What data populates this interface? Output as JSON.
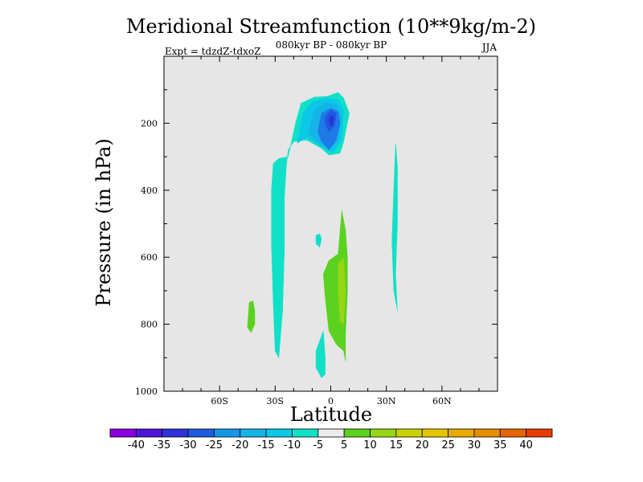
{
  "chart_data": {
    "type": "contour",
    "title": "Meridional Streamfunction (10**9kg/m-2)",
    "subtitle": "080kyr BP - 080kyr BP",
    "experiment": "Expt = tdzdZ-tdxoZ",
    "season": "JJA",
    "xlabel": "Latitude",
    "ylabel": "Pressure (in hPa)",
    "xlim": [
      -90,
      90
    ],
    "ylim": [
      1000,
      0
    ],
    "x_ticks": [
      {
        "value": -60,
        "label": "60S"
      },
      {
        "value": -30,
        "label": "30S"
      },
      {
        "value": 0,
        "label": "0"
      },
      {
        "value": 30,
        "label": "30N"
      },
      {
        "value": 60,
        "label": "60N"
      }
    ],
    "y_ticks": [
      {
        "value": 200,
        "label": "200"
      },
      {
        "value": 400,
        "label": "400"
      },
      {
        "value": 600,
        "label": "600"
      },
      {
        "value": 800,
        "label": "800"
      },
      {
        "value": 1000,
        "label": "1000"
      }
    ],
    "background_color": "#e6e6e6",
    "colorbar": {
      "colors": [
        "#8a00e0",
        "#5014d8",
        "#2d32dc",
        "#1e5ae0",
        "#1496e6",
        "#14b4e6",
        "#0ac8e6",
        "#10e0c8",
        "#ececec",
        "#5ad21e",
        "#96d614",
        "#c8d200",
        "#e6c400",
        "#e6aa00",
        "#e68c00",
        "#e66400",
        "#e63c00"
      ],
      "labels": [
        "-40",
        "-35",
        "-30",
        "-25",
        "-20",
        "-15",
        "-10",
        "-5",
        "5",
        "10",
        "15",
        "20",
        "25",
        "30",
        "35",
        "40"
      ]
    },
    "regions": [
      {
        "level": -5,
        "color": "#10e0c8",
        "points": [
          [
            -23,
            300
          ],
          [
            -19,
            200
          ],
          [
            -16,
            140
          ],
          [
            -9,
            122
          ],
          [
            -2,
            120
          ],
          [
            4,
            108
          ],
          [
            7,
            125
          ],
          [
            10,
            170
          ],
          [
            7,
            255
          ],
          [
            5,
            290
          ],
          [
            -1,
            295
          ],
          [
            -5,
            275
          ],
          [
            -13,
            250
          ],
          [
            -20,
            255
          ],
          [
            -23,
            280
          ],
          [
            -24,
            330
          ],
          [
            -25,
            420
          ],
          [
            -25,
            570
          ],
          [
            -26,
            760
          ],
          [
            -28,
            900
          ],
          [
            -30,
            880
          ],
          [
            -31,
            740
          ],
          [
            -32,
            560
          ],
          [
            -32,
            400
          ],
          [
            -31,
            320
          ],
          [
            -28,
            305
          ]
        ]
      },
      {
        "level": -10,
        "color": "#0ac8e6",
        "points": [
          [
            -18,
            260
          ],
          [
            -15,
            170
          ],
          [
            -10,
            135
          ],
          [
            -2,
            125
          ],
          [
            4,
            130
          ],
          [
            7,
            160
          ],
          [
            6,
            250
          ],
          [
            1,
            288
          ],
          [
            -5,
            270
          ],
          [
            -13,
            240
          ]
        ]
      },
      {
        "level": -15,
        "color": "#14b4e6",
        "points": [
          [
            -12,
            230
          ],
          [
            -9,
            160
          ],
          [
            -3,
            140
          ],
          [
            3,
            145
          ],
          [
            6,
            180
          ],
          [
            4,
            250
          ],
          [
            0,
            275
          ],
          [
            -6,
            262
          ]
        ]
      },
      {
        "level": -20,
        "color": "#1e7ae6",
        "points": [
          [
            -7,
            225
          ],
          [
            -5,
            170
          ],
          [
            0,
            155
          ],
          [
            4,
            165
          ],
          [
            5,
            200
          ],
          [
            3,
            250
          ],
          [
            -1,
            280
          ],
          [
            -5,
            255
          ]
        ]
      },
      {
        "level": -25,
        "color": "#1e5ae0",
        "points": [
          [
            -3,
            180
          ],
          [
            0,
            160
          ],
          [
            3,
            170
          ],
          [
            2,
            210
          ],
          [
            -1,
            225
          ],
          [
            -3,
            205
          ]
        ]
      },
      {
        "level": -30,
        "color": "#2d32dc",
        "points": [
          [
            -1,
            190
          ],
          [
            0,
            175
          ],
          [
            2,
            182
          ],
          [
            1,
            205
          ],
          [
            0,
            210
          ]
        ]
      },
      {
        "level": -5,
        "color": "#10e0c8",
        "points": [
          [
            -8,
            535
          ],
          [
            -6,
            530
          ],
          [
            -5,
            545
          ],
          [
            -6,
            570
          ],
          [
            -8,
            560
          ]
        ]
      },
      {
        "level": -5,
        "color": "#10e0c8",
        "points": [
          [
            -6,
            850
          ],
          [
            -4,
            820
          ],
          [
            -3,
            900
          ],
          [
            -3,
            950
          ],
          [
            -5,
            960
          ],
          [
            -8,
            930
          ],
          [
            -8,
            880
          ]
        ]
      },
      {
        "level": -5,
        "color": "#10e0c8",
        "points": [
          [
            35,
            260
          ],
          [
            36,
            330
          ],
          [
            36,
            500
          ],
          [
            35,
            650
          ],
          [
            36,
            760
          ],
          [
            34,
            700
          ],
          [
            33,
            550
          ],
          [
            34,
            400
          ]
        ]
      },
      {
        "level": 5,
        "color": "#5ad21e",
        "points": [
          [
            -44,
            735
          ],
          [
            -42,
            730
          ],
          [
            -41,
            760
          ],
          [
            -41,
            800
          ],
          [
            -43,
            825
          ],
          [
            -45,
            810
          ]
        ]
      },
      {
        "level": 5,
        "color": "#5ad21e",
        "points": [
          [
            -4,
            650
          ],
          [
            -1,
            610
          ],
          [
            4,
            590
          ],
          [
            6,
            460
          ],
          [
            8,
            520
          ],
          [
            9,
            600
          ],
          [
            9,
            700
          ],
          [
            8,
            830
          ],
          [
            8,
            910
          ],
          [
            7,
            880
          ],
          [
            3,
            860
          ],
          [
            -1,
            820
          ],
          [
            -3,
            720
          ]
        ]
      },
      {
        "level": 10,
        "color": "#96d614",
        "points": [
          [
            4,
            620
          ],
          [
            7,
            600
          ],
          [
            8,
            700
          ],
          [
            7,
            800
          ],
          [
            5,
            790
          ],
          [
            4,
            700
          ]
        ]
      }
    ]
  }
}
